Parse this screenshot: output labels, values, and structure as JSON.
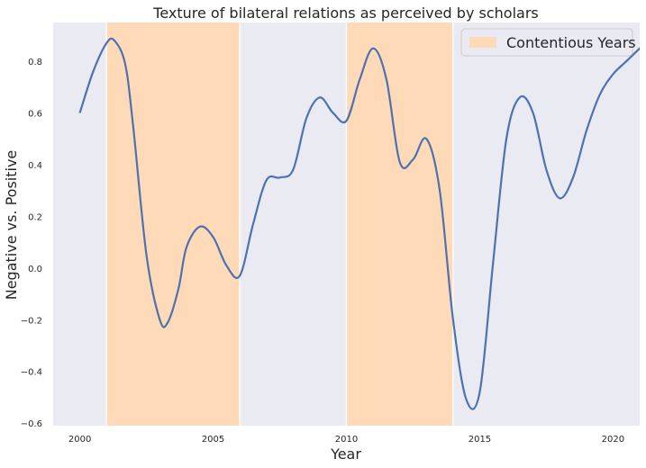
{
  "chart_data": {
    "type": "line",
    "title": "Texture of bilateral relations as perceived by scholars",
    "xlabel": "Year",
    "ylabel": "Negative vs. Positive",
    "xlim": [
      1999.0,
      2021.0
    ],
    "ylim": [
      -0.61,
      0.95
    ],
    "xticks": [
      2000,
      2005,
      2010,
      2015,
      2020
    ],
    "yticks": [
      -0.6,
      -0.4,
      -0.2,
      0.0,
      0.2,
      0.4,
      0.6,
      0.8
    ],
    "ytick_labels": [
      "−0.6",
      "−0.4",
      "−0.2",
      "0.0",
      "0.2",
      "0.4",
      "0.6",
      "0.8"
    ],
    "grid": false,
    "legend_position": "top-right",
    "series": [
      {
        "color": "#4c72b0",
        "x": [
          2000.0,
          2000.5,
          2001.0,
          2001.3,
          2001.7,
          2002.0,
          2002.5,
          2003.0,
          2003.3,
          2003.7,
          2004.0,
          2004.5,
          2005.0,
          2005.5,
          2006.0,
          2006.5,
          2007.0,
          2007.5,
          2008.0,
          2008.5,
          2009.0,
          2009.5,
          2010.0,
          2010.5,
          2011.0,
          2011.5,
          2012.0,
          2012.5,
          2013.0,
          2013.5,
          2014.0,
          2014.5,
          2015.0,
          2015.5,
          2016.0,
          2016.5,
          2017.0,
          2017.5,
          2018.0,
          2018.5,
          2019.0,
          2019.5,
          2020.0,
          2020.5,
          2021.2
        ],
        "values": [
          0.6,
          0.76,
          0.87,
          0.88,
          0.79,
          0.55,
          0.05,
          -0.2,
          -0.21,
          -0.08,
          0.08,
          0.16,
          0.12,
          0.01,
          -0.03,
          0.17,
          0.34,
          0.35,
          0.38,
          0.58,
          0.66,
          0.6,
          0.57,
          0.73,
          0.85,
          0.73,
          0.41,
          0.42,
          0.5,
          0.3,
          -0.2,
          -0.51,
          -0.48,
          0.02,
          0.5,
          0.66,
          0.6,
          0.38,
          0.27,
          0.35,
          0.53,
          0.67,
          0.75,
          0.8,
          0.87
        ]
      }
    ],
    "shaded_regions": [
      {
        "start": 2001.0,
        "end": 2006.0,
        "color": "#ffdab9"
      },
      {
        "start": 2010.0,
        "end": 2014.0,
        "color": "#ffdab9"
      }
    ],
    "legend": [
      {
        "label": "Contentious Years",
        "color": "#ffdab9"
      }
    ],
    "colors": {
      "plot_background": "#eaeaf2",
      "figure_background": "#ffffff",
      "line": "#4c72b0",
      "shade": "#ffdab9"
    }
  }
}
